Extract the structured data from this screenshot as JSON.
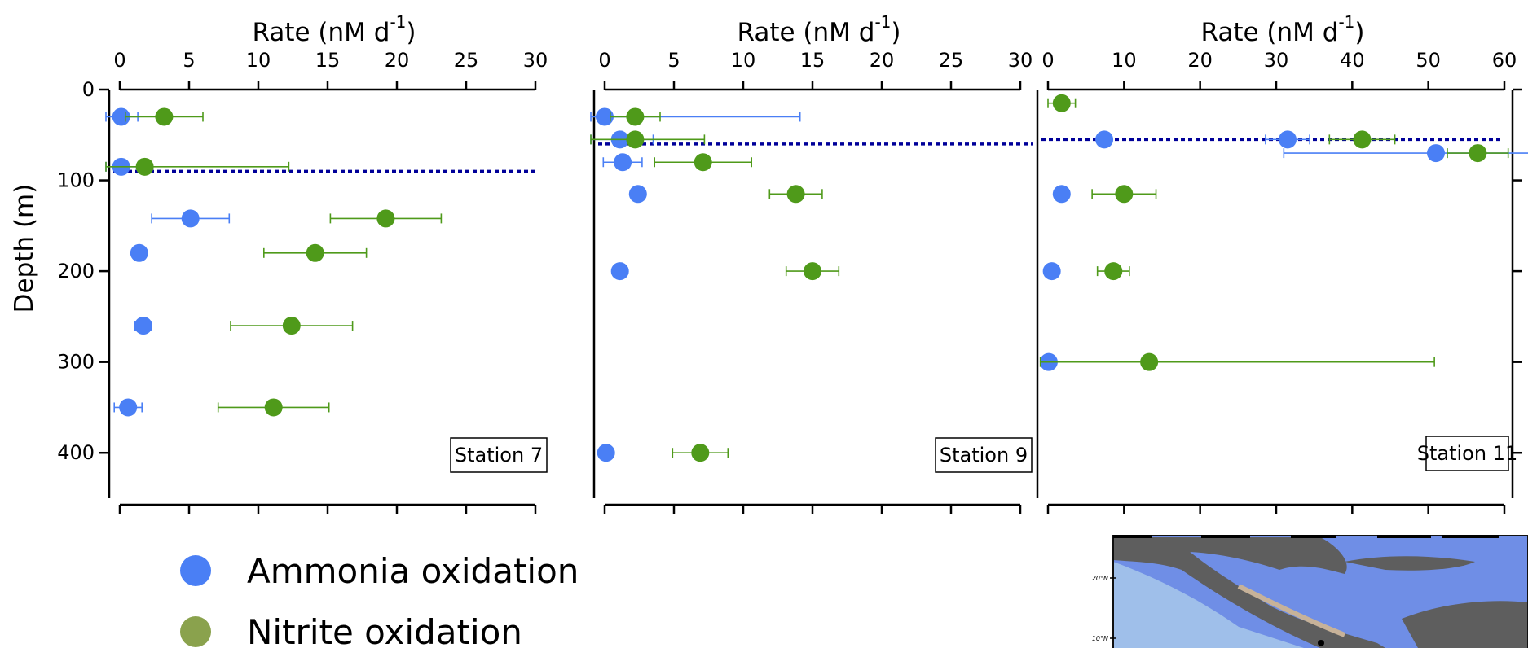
{
  "chart_data": {
    "type": "scatter",
    "x_title": "Rate (nM d",
    "x_title_sup": "-1",
    "x_title_end": ")",
    "y_title": "Depth (m)",
    "y_ticks": [
      0,
      100,
      200,
      300,
      400
    ],
    "ylim": [
      0,
      450
    ],
    "y_reversed": true,
    "colors": {
      "ammonia": "#4a7ff5",
      "nitrite": "#4f9a1a",
      "nitrite_legend": "#8aa24d",
      "mixed_layer": "#000099"
    },
    "legend": [
      {
        "key": "ammonia",
        "label": "Ammonia oxidation"
      },
      {
        "key": "nitrite",
        "label": "Nitrite oxidation"
      }
    ],
    "panels": [
      {
        "station": "Station 7",
        "xlim": [
          0,
          30
        ],
        "x_ticks": [
          0,
          5,
          10,
          15,
          20,
          25,
          30
        ],
        "mixed_layer_depth": 90,
        "series": [
          {
            "key": "ammonia",
            "points": [
              {
                "depth": 30,
                "rate": 0.1,
                "err": 1.2
              },
              {
                "depth": 85,
                "rate": 0.1,
                "err": 1.2
              },
              {
                "depth": 142,
                "rate": 5.1,
                "err": 2.8
              },
              {
                "depth": 180,
                "rate": 1.4,
                "err": 0.4
              },
              {
                "depth": 260,
                "rate": 1.7,
                "err": 0.6
              },
              {
                "depth": 350,
                "rate": 0.6,
                "err": 1.0
              }
            ]
          },
          {
            "key": "nitrite",
            "points": [
              {
                "depth": 30,
                "rate": 3.2,
                "err": 2.8
              },
              {
                "depth": 85,
                "rate": 1.8,
                "err": 10.4
              },
              {
                "depth": 142,
                "rate": 19.2,
                "err": 4.0
              },
              {
                "depth": 180,
                "rate": 14.1,
                "err": 3.7
              },
              {
                "depth": 260,
                "rate": 12.4,
                "err": 4.4
              },
              {
                "depth": 350,
                "rate": 11.1,
                "err": 4.0
              }
            ]
          }
        ]
      },
      {
        "station": "Station 9",
        "xlim": [
          0,
          30
        ],
        "x_ticks": [
          0,
          5,
          10,
          15,
          20,
          25,
          30
        ],
        "mixed_layer_depth": 60,
        "series": [
          {
            "key": "ammonia",
            "points": [
              {
                "depth": 30,
                "rate": 0.0,
                "err": 14.1
              },
              {
                "depth": 55,
                "rate": 1.1,
                "err": 2.4
              },
              {
                "depth": 80,
                "rate": 1.3,
                "err": 1.4
              },
              {
                "depth": 115,
                "rate": 2.4,
                "err": 0.4
              },
              {
                "depth": 200,
                "rate": 1.1,
                "err": 0.0
              },
              {
                "depth": 400,
                "rate": 0.1,
                "err": 0.0
              }
            ]
          },
          {
            "key": "nitrite",
            "points": [
              {
                "depth": 30,
                "rate": 2.2,
                "err": 1.8
              },
              {
                "depth": 55,
                "rate": 2.2,
                "err": 5.0
              },
              {
                "depth": 80,
                "rate": 7.1,
                "err": 3.5
              },
              {
                "depth": 115,
                "rate": 13.8,
                "err": 1.9
              },
              {
                "depth": 200,
                "rate": 15.0,
                "err": 1.9
              },
              {
                "depth": 400,
                "rate": 6.9,
                "err": 2.0
              }
            ]
          }
        ]
      },
      {
        "station": "Station 11",
        "xlim": [
          0,
          60
        ],
        "x_ticks": [
          0,
          10,
          20,
          30,
          40,
          50,
          60
        ],
        "mixed_layer_depth": 55,
        "series": [
          {
            "key": "ammonia",
            "points": [
              {
                "depth": 55,
                "rate": 7.4,
                "err": 0.0
              },
              {
                "depth": 55,
                "rate": 31.5,
                "err": 2.9
              },
              {
                "depth": 70,
                "rate": 51.0,
                "err": 20.0
              },
              {
                "depth": 115,
                "rate": 1.8,
                "err": 0.0
              },
              {
                "depth": 200,
                "rate": 0.5,
                "err": 0.0
              },
              {
                "depth": 300,
                "rate": 0.1,
                "err": 0.0
              }
            ]
          },
          {
            "key": "nitrite",
            "points": [
              {
                "depth": 15,
                "rate": 1.8,
                "err": 1.8
              },
              {
                "depth": 55,
                "rate": 41.3,
                "err": 4.3
              },
              {
                "depth": 70,
                "rate": 56.5,
                "err": 4.0
              },
              {
                "depth": 115,
                "rate": 10.0,
                "err": 4.2
              },
              {
                "depth": 200,
                "rate": 8.6,
                "err": 2.1
              },
              {
                "depth": 300,
                "rate": 13.3,
                "err": 37.5
              }
            ]
          }
        ]
      }
    ]
  },
  "map_inset": {
    "lat_labels": [
      "20°N",
      "10°N"
    ],
    "colors": {
      "deep": "#6f8ee6",
      "shelf": "#9fbfea",
      "land": "#5e5e5e",
      "coast": "#c7b299",
      "frame": "#111111"
    }
  }
}
